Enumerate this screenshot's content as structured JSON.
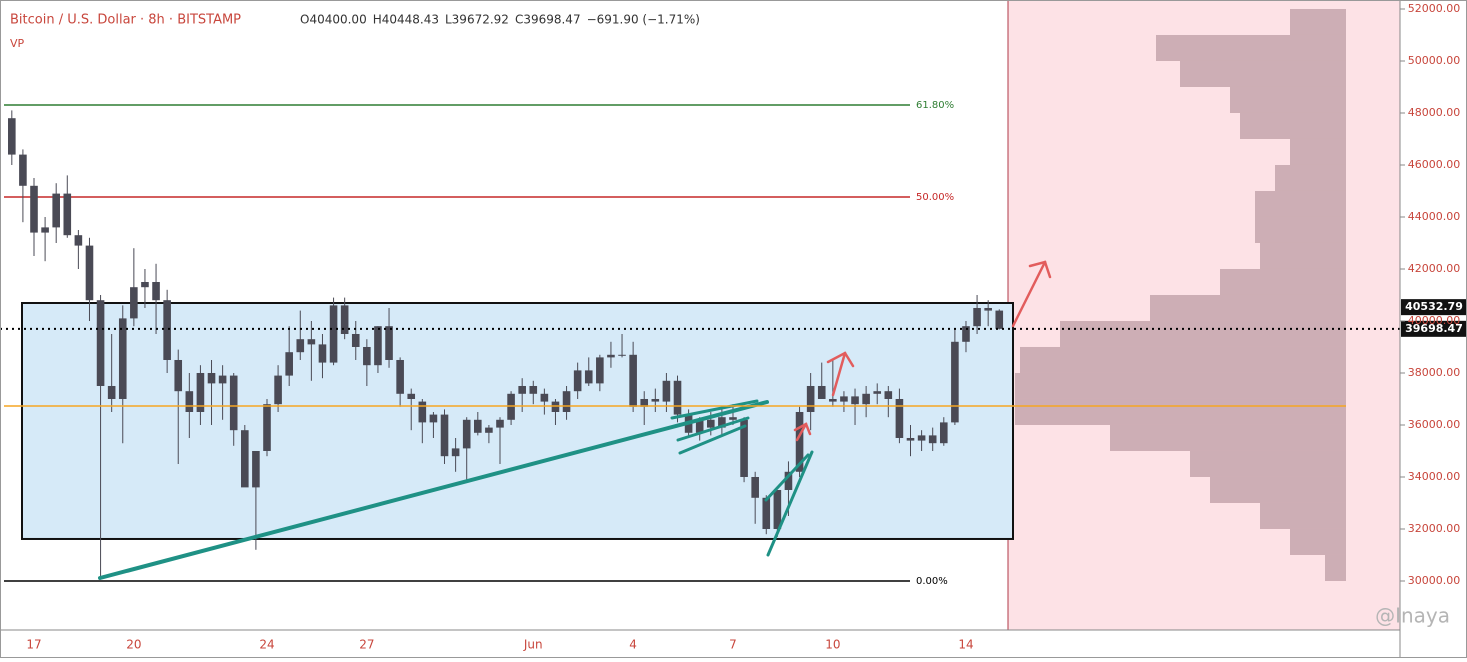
{
  "chart_data": {
    "type": "candlestick",
    "title": "Bitcoin / U.S. Dollar · 8h · BITSTAMP",
    "legend_values": [
      "O40400.00",
      "H40448.43",
      "L39672.92",
      "C39698.47",
      "−691.90 (−1.71%)"
    ],
    "indicator": "VP",
    "watermark": "@Inaya",
    "categories": [
      null,
      null,
      "17",
      null,
      null,
      null,
      null,
      null,
      null,
      null,
      null,
      "20",
      null,
      null,
      null,
      null,
      null,
      null,
      null,
      null,
      null,
      null,
      null,
      "24",
      null,
      null,
      null,
      null,
      null,
      null,
      null,
      null,
      "27",
      null,
      null,
      null,
      null,
      null,
      null,
      null,
      null,
      null,
      null,
      null,
      null,
      null,
      null,
      "Jun",
      null,
      null,
      null,
      null,
      null,
      null,
      null,
      null,
      "4",
      null,
      null,
      null,
      null,
      null,
      null,
      null,
      null,
      "7",
      null,
      null,
      null,
      null,
      null,
      null,
      null,
      null,
      "10",
      null,
      null,
      null,
      null,
      null,
      null,
      null,
      null,
      null,
      null,
      null,
      "14",
      null,
      null,
      null
    ],
    "open": [
      47800,
      46400,
      45200,
      43400,
      43600,
      44900,
      43300,
      42900,
      40800,
      37500,
      37000,
      40100,
      41300,
      41500,
      40800,
      38500,
      37300,
      36500,
      38000,
      37600,
      37900,
      35800,
      33600,
      35000,
      36800,
      37900,
      38800,
      39300,
      39100,
      38400,
      40600,
      39500,
      39000,
      38300,
      39800,
      38500,
      37200,
      36900,
      36100,
      36400,
      34800,
      35100,
      36200,
      35700,
      35900,
      36200,
      37200,
      37500,
      37200,
      36900,
      36500,
      37300,
      38100,
      37600,
      38600,
      38700,
      38700,
      36700,
      37000,
      36900,
      37700,
      36400,
      35700,
      36200,
      35900,
      36300,
      36200,
      34000,
      33200,
      32000,
      33500,
      34200,
      36500,
      37500,
      37000,
      36900,
      37100,
      36800,
      37200,
      37300,
      37000,
      35500,
      35400,
      35600,
      35300,
      36100,
      39200,
      39800,
      40500,
      40400
    ],
    "high": [
      48100,
      46600,
      45500,
      44000,
      45300,
      45600,
      43500,
      43200,
      41000,
      39500,
      40600,
      42800,
      42000,
      42200,
      41200,
      38900,
      38000,
      38300,
      38500,
      38300,
      38000,
      36000,
      35000,
      37000,
      38300,
      39800,
      40400,
      40000,
      39500,
      40900,
      40900,
      40000,
      39300,
      39800,
      40500,
      38600,
      37400,
      37000,
      36500,
      36600,
      35500,
      36300,
      36500,
      36000,
      36300,
      37300,
      37800,
      37700,
      37400,
      37000,
      37500,
      38400,
      38600,
      38700,
      39200,
      39500,
      39200,
      37300,
      37400,
      38000,
      37900,
      36600,
      36300,
      36500,
      36600,
      36800,
      36300,
      34200,
      33300,
      33500,
      34600,
      36700,
      38000,
      38400,
      38500,
      37300,
      37400,
      37500,
      37600,
      37500,
      37400,
      36000,
      35800,
      35900,
      36300,
      39700,
      40000,
      41000,
      40800,
      40448.43
    ],
    "low": [
      46000,
      43800,
      42500,
      42300,
      43000,
      43200,
      42000,
      40000,
      30100,
      36500,
      35300,
      39800,
      40500,
      39500,
      38000,
      34500,
      35500,
      36000,
      36000,
      36200,
      35200,
      33800,
      31200,
      34800,
      36500,
      37500,
      38500,
      37700,
      37800,
      38300,
      39300,
      38500,
      37500,
      38000,
      38200,
      36700,
      35800,
      35300,
      35500,
      34500,
      34200,
      33800,
      35600,
      35300,
      34500,
      36000,
      36500,
      36800,
      36400,
      36000,
      36200,
      37000,
      37500,
      37300,
      38200,
      38600,
      36500,
      36000,
      36500,
      36500,
      36100,
      35500,
      35400,
      35600,
      35600,
      36000,
      33800,
      32200,
      31800,
      31700,
      32500,
      34000,
      35800,
      37000,
      36700,
      36500,
      36000,
      36300,
      36800,
      36300,
      35300,
      34800,
      35000,
      35000,
      35200,
      36000,
      38800,
      39500,
      39800,
      39672.92
    ],
    "close": [
      46400,
      45200,
      43400,
      43600,
      44900,
      43300,
      42900,
      40800,
      37500,
      37000,
      40100,
      41300,
      41500,
      40800,
      38500,
      37300,
      36500,
      38000,
      37600,
      37900,
      35800,
      33600,
      35000,
      36800,
      37900,
      38800,
      39300,
      39100,
      38400,
      40600,
      39500,
      39000,
      38300,
      39800,
      38500,
      37200,
      37000,
      36100,
      36400,
      34800,
      35100,
      36200,
      35700,
      35900,
      36200,
      37200,
      37500,
      37200,
      36900,
      36500,
      37300,
      38100,
      37600,
      38600,
      38700,
      38700,
      36700,
      37000,
      36900,
      37700,
      36400,
      35700,
      36200,
      35900,
      36300,
      36200,
      34000,
      33200,
      32000,
      33500,
      34200,
      36500,
      37500,
      37000,
      36900,
      37100,
      36800,
      37200,
      37300,
      37000,
      35500,
      35400,
      35600,
      35300,
      36100,
      39200,
      39800,
      40500,
      40400,
      39698.47
    ],
    "candle_color": "#4a4a55",
    "ylim": [
      28115,
      52346
    ],
    "yticks": [
      {
        "value": 30000,
        "label": "30000.00"
      },
      {
        "value": 32000,
        "label": "32000.00"
      },
      {
        "value": 34000,
        "label": "34000.00"
      },
      {
        "value": 36000,
        "label": "36000.00"
      },
      {
        "value": 38000,
        "label": "38000.00"
      },
      {
        "value": 40000,
        "label": "40000.00"
      },
      {
        "value": 42000,
        "label": "42000.00"
      },
      {
        "value": 44000,
        "label": "44000.00"
      },
      {
        "value": 46000,
        "label": "46000.00"
      },
      {
        "value": 48000,
        "label": "48000.00"
      },
      {
        "value": 50000,
        "label": "50000.00"
      },
      {
        "value": 52000,
        "label": "52000.00"
      }
    ],
    "levels": [
      {
        "label": "61.80%",
        "value": 48308,
        "color": "#2e7d32"
      },
      {
        "label": "50.00%",
        "value": 44770,
        "color": "#c62828"
      },
      {
        "label": "0.00%",
        "value": 30000,
        "color": "#000000"
      }
    ],
    "poc_line": {
      "value": 36731,
      "color": "#f5a623"
    },
    "range_box": {
      "top": 40692,
      "bottom": 31616
    },
    "price_labels": [
      {
        "value": 40532.79,
        "label": "40532.79"
      },
      {
        "value": 39698.47,
        "label": "39698.47"
      }
    ],
    "volume_profile": {
      "bins": [
        30000,
        31000,
        32000,
        33000,
        34000,
        35000,
        36000,
        37000,
        38000,
        39000,
        40000,
        41000,
        42000,
        43000,
        44000,
        45000,
        46000,
        47000,
        48000,
        49000,
        50000,
        51000,
        52000
      ],
      "values": [
        21,
        56,
        86,
        136,
        156,
        236,
        331,
        331,
        326,
        286,
        196,
        126,
        86,
        91,
        91,
        71,
        56,
        106,
        116,
        166,
        190,
        56
      ],
      "color": "#c4a4ab"
    }
  }
}
